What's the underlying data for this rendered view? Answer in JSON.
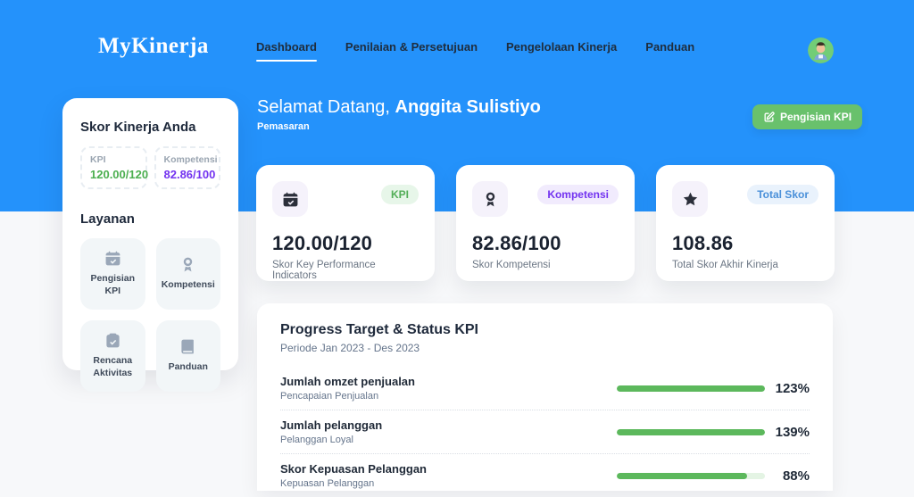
{
  "brand": "MyKinerja",
  "nav": {
    "items": [
      {
        "label": "Dashboard",
        "active": true
      },
      {
        "label": "Penilaian & Persetujuan",
        "active": false
      },
      {
        "label": "Pengelolaan Kinerja",
        "active": false
      },
      {
        "label": "Panduan",
        "active": false
      }
    ]
  },
  "header": {
    "greeting": "Selamat Datang,",
    "user_name": "Anggita Sulistiyo",
    "department": "Pemasaran",
    "cta_label": "Pengisian KPI"
  },
  "sidebar": {
    "score_title": "Skor Kinerja Anda",
    "kpi": {
      "label": "KPI",
      "value": "120.00/120"
    },
    "kompetensi": {
      "label": "Kompetensi",
      "value": "82.86/100"
    },
    "services_title": "Layanan",
    "services": [
      {
        "label": "Pengisian KPI",
        "icon": "calendar-check-icon"
      },
      {
        "label": "Kompetensi",
        "icon": "award-icon"
      },
      {
        "label": "Rencana Aktivitas",
        "icon": "clipboard-check-icon"
      },
      {
        "label": "Panduan",
        "icon": "book-icon"
      }
    ]
  },
  "stats": [
    {
      "badge": "KPI",
      "value": "120.00/120",
      "caption": "Skor Key Performance Indicators",
      "icon": "calendar-check-icon"
    },
    {
      "badge": "Kompetensi",
      "value": "82.86/100",
      "caption": "Skor Kompetensi",
      "icon": "award-icon"
    },
    {
      "badge": "Total Skor",
      "value": "108.86",
      "caption": "Total Skor Akhir Kinerja",
      "icon": "star-icon"
    }
  ],
  "progress": {
    "title": "Progress Target & Status KPI",
    "period": "Periode Jan 2023 - Des 2023",
    "rows": [
      {
        "label": "Jumlah omzet penjualan",
        "sublabel": "Pencapaian Penjualan",
        "percent": 123,
        "percent_label": "123%"
      },
      {
        "label": "Jumlah pelanggan",
        "sublabel": "Pelanggan Loyal",
        "percent": 139,
        "percent_label": "139%"
      },
      {
        "label": "Skor Kepuasan Pelanggan",
        "sublabel": "Kepuasan Pelanggan",
        "percent": 88,
        "percent_label": "88%"
      }
    ]
  },
  "colors": {
    "hero_blue": "#2492fb",
    "accent_green": "#5cb85c",
    "button_green": "#69c16c",
    "kpi_green": "#4caf50",
    "kompetensi_purple": "#7333f0",
    "total_skor_blue": "#4a90d9",
    "card_bg": "#ffffff",
    "page_bg": "#f7f8fa"
  }
}
